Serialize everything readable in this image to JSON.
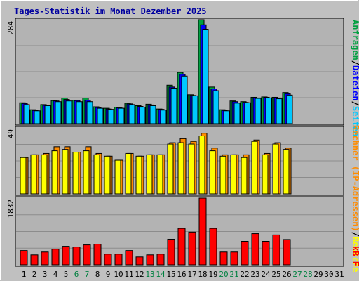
{
  "title": "Tages-Statistik im Monat Dezember 2025",
  "colors": {
    "background": "#c0c0c0",
    "title": "#0000a0",
    "panel_bg": "#b3b3b3",
    "gridline": "#8c8c8c",
    "hits": "#00a040",
    "files": "#0000ff",
    "pages": "#00c8ff",
    "sites": "#ff8c00",
    "visits": "#ffff00",
    "kbytes": "#ff0000",
    "weekend_day": "#008040",
    "weekday_day": "#000000"
  },
  "chart_data": [
    {
      "type": "bar",
      "panel": "requests",
      "ymax_label": "284",
      "ylim": [
        0,
        284
      ],
      "grid": true,
      "right_label": {
        "hits": "Anfragen",
        "sep1": "/",
        "files": "Dateien",
        "sep2": "/",
        "pages": "Seiten"
      },
      "x": [
        1,
        2,
        3,
        4,
        5,
        6,
        7,
        8,
        9,
        10,
        11,
        12,
        13,
        14,
        15,
        16,
        17,
        18,
        19,
        20,
        21,
        22,
        23,
        24,
        25,
        26,
        27,
        28,
        29,
        30,
        31
      ],
      "series": [
        {
          "name": "Anfragen",
          "values": [
            57,
            38,
            52,
            63,
            70,
            64,
            70,
            46,
            42,
            45,
            56,
            49,
            53,
            40,
            105,
            140,
            79,
            284,
            100,
            38,
            62,
            60,
            72,
            73,
            72,
            85,
            0,
            0,
            0,
            0,
            0
          ]
        },
        {
          "name": "Dateien",
          "values": [
            55,
            36,
            50,
            62,
            66,
            63,
            64,
            44,
            40,
            43,
            54,
            47,
            51,
            39,
            100,
            135,
            77,
            270,
            95,
            36,
            60,
            58,
            70,
            72,
            70,
            82,
            0,
            0,
            0,
            0,
            0
          ]
        },
        {
          "name": "Seiten",
          "values": [
            52,
            35,
            49,
            60,
            62,
            60,
            60,
            42,
            39,
            42,
            52,
            45,
            49,
            37,
            97,
            130,
            76,
            258,
            90,
            35,
            56,
            57,
            69,
            70,
            68,
            78,
            0,
            0,
            0,
            0,
            0
          ]
        }
      ]
    },
    {
      "type": "bar",
      "panel": "visitors",
      "ymax_label": "49",
      "ylim": [
        0,
        49
      ],
      "grid": true,
      "right_label": {
        "sites": "Rechner (IP-Adressen)",
        "sep1": "/",
        "visits": "Besuche"
      },
      "x": [
        1,
        2,
        3,
        4,
        5,
        6,
        7,
        8,
        9,
        10,
        11,
        12,
        13,
        14,
        15,
        16,
        17,
        18,
        19,
        20,
        21,
        22,
        23,
        24,
        25,
        26,
        27,
        28,
        29,
        30,
        31
      ],
      "series": [
        {
          "name": "Rechner (IP-Adressen)",
          "values": [
            27,
            29,
            29,
            32,
            33,
            31,
            32,
            29,
            28,
            25,
            30,
            28,
            29,
            29,
            37,
            38,
            37,
            43,
            32,
            28,
            29,
            27,
            39,
            29,
            37,
            33,
            0,
            0,
            0,
            0,
            0
          ]
        },
        {
          "name": "Besuche",
          "values": [
            27,
            29,
            30,
            35,
            35,
            31,
            35,
            30,
            28,
            25,
            30,
            28,
            29,
            29,
            38,
            41,
            39,
            45,
            34,
            29,
            29,
            29,
            40,
            30,
            38,
            34,
            0,
            0,
            0,
            0,
            0
          ]
        }
      ]
    },
    {
      "type": "bar",
      "panel": "kbytes",
      "ymax_label": "1832",
      "ylim": [
        0,
        1832
      ],
      "grid": true,
      "right_label": {
        "kbytes": "kB F"
      },
      "x": [
        1,
        2,
        3,
        4,
        5,
        6,
        7,
        8,
        9,
        10,
        11,
        12,
        13,
        14,
        15,
        16,
        17,
        18,
        19,
        20,
        21,
        22,
        23,
        24,
        25,
        26,
        27,
        28,
        29,
        30,
        31
      ],
      "series": [
        {
          "name": "kB F",
          "values": [
            392,
            274,
            352,
            431,
            509,
            490,
            548,
            568,
            294,
            294,
            392,
            216,
            274,
            294,
            704,
            1000,
            900,
            1832,
            1000,
            352,
            352,
            646,
            857,
            646,
            822,
            696,
            0,
            0,
            0,
            0,
            0
          ]
        }
      ]
    }
  ],
  "x_labels": [
    "1",
    "2",
    "3",
    "4",
    "5",
    "6",
    "7",
    "8",
    "9",
    "10",
    "11",
    "12",
    "13",
    "14",
    "15",
    "16",
    "17",
    "18",
    "19",
    "20",
    "21",
    "22",
    "23",
    "24",
    "25",
    "26",
    "27",
    "28",
    "29",
    "30",
    "31"
  ],
  "weekend_days": [
    6,
    7,
    13,
    14,
    20,
    21,
    27,
    28
  ]
}
